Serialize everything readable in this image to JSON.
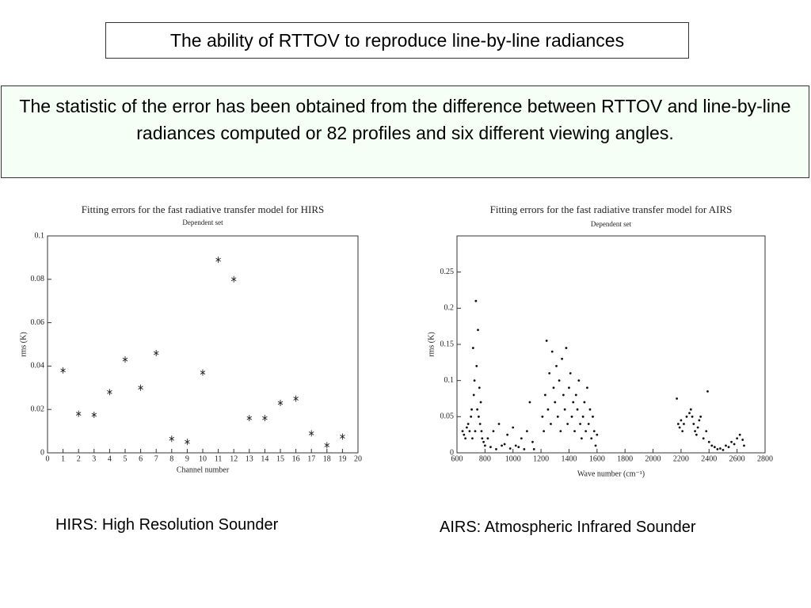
{
  "header": {
    "title": "The ability of RTTOV to reproduce line-by-line radiances"
  },
  "description": "The statistic of the error has been obtained from the difference between RTTOV and line-by-line  radiances computed or 82 profiles and six different viewing angles.",
  "captions": [
    "HIRS: High Resolution Sounder",
    "AIRS: Atmospheric Infrared Sounder"
  ],
  "chart_data": [
    {
      "type": "scatter",
      "title": "Fitting errors for the fast radiative transfer model for HIRS",
      "subtitle": "Dependent set",
      "x_label": "Channel number",
      "y_label": "rms (K)",
      "marker": "asterisk",
      "color": "#222",
      "x": [
        1,
        2,
        3,
        4,
        5,
        6,
        7,
        8,
        9,
        10,
        11,
        12,
        13,
        14,
        15,
        16,
        17,
        18,
        19
      ],
      "values": [
        0.038,
        0.018,
        0.0175,
        0.028,
        0.043,
        0.03,
        0.046,
        0.0065,
        0.005,
        0.037,
        0.089,
        0.08,
        0.016,
        0.016,
        0.023,
        0.025,
        0.009,
        0.0035,
        0.0075
      ],
      "xlim": [
        0,
        20
      ],
      "xticks": [
        0,
        1,
        2,
        3,
        4,
        5,
        6,
        7,
        8,
        9,
        10,
        11,
        12,
        13,
        14,
        15,
        16,
        17,
        18,
        19,
        20
      ],
      "ylim": [
        0,
        0.1
      ],
      "yticks": [
        0,
        0.02,
        0.04,
        0.06,
        0.08,
        0.1
      ]
    },
    {
      "type": "scatter",
      "title": "Fitting errors for the fast radiative transfer model for AIRS",
      "subtitle": "Dependent set",
      "x_label": "Wave number (cm⁻¹)",
      "y_label": "rms (K)",
      "marker": "dot",
      "color": "#111",
      "x": [
        640,
        650,
        660,
        670,
        680,
        690,
        700,
        705,
        710,
        715,
        720,
        725,
        730,
        735,
        740,
        745,
        750,
        755,
        760,
        765,
        770,
        775,
        780,
        790,
        800,
        820,
        840,
        860,
        880,
        900,
        920,
        940,
        960,
        980,
        1000,
        1020,
        1040,
        1060,
        1080,
        1100,
        1120,
        1140,
        1150,
        1210,
        1220,
        1230,
        1240,
        1250,
        1260,
        1270,
        1280,
        1290,
        1300,
        1310,
        1320,
        1330,
        1340,
        1350,
        1360,
        1370,
        1380,
        1390,
        1400,
        1410,
        1420,
        1430,
        1440,
        1450,
        1460,
        1470,
        1480,
        1490,
        1500,
        1510,
        1520,
        1530,
        1540,
        1550,
        1560,
        1570,
        1580,
        1590,
        1600,
        2170,
        2180,
        2190,
        2200,
        2210,
        2220,
        2240,
        2260,
        2270,
        2280,
        2290,
        2300,
        2310,
        2320,
        2330,
        2340,
        2360,
        2380,
        2390,
        2400,
        2420,
        2440,
        2460,
        2480,
        2500,
        2520,
        2540,
        2560,
        2580,
        2600,
        2620,
        2640,
        2650
      ],
      "values": [
        0.03,
        0.025,
        0.02,
        0.035,
        0.04,
        0.03,
        0.05,
        0.06,
        0.02,
        0.145,
        0.08,
        0.1,
        0.03,
        0.21,
        0.12,
        0.06,
        0.17,
        0.05,
        0.09,
        0.04,
        0.07,
        0.03,
        0.02,
        0.015,
        0.01,
        0.02,
        0.008,
        0.03,
        0.005,
        0.04,
        0.01,
        0.012,
        0.025,
        0.006,
        0.035,
        0.01,
        0.008,
        0.02,
        0.005,
        0.03,
        0.07,
        0.015,
        0.005,
        0.05,
        0.03,
        0.08,
        0.155,
        0.06,
        0.11,
        0.04,
        0.14,
        0.09,
        0.07,
        0.12,
        0.05,
        0.1,
        0.03,
        0.13,
        0.08,
        0.06,
        0.145,
        0.04,
        0.09,
        0.11,
        0.05,
        0.07,
        0.03,
        0.08,
        0.06,
        0.1,
        0.04,
        0.02,
        0.05,
        0.07,
        0.03,
        0.09,
        0.04,
        0.06,
        0.02,
        0.05,
        0.03,
        0.01,
        0.025,
        0.075,
        0.04,
        0.035,
        0.045,
        0.03,
        0.04,
        0.05,
        0.055,
        0.06,
        0.05,
        0.04,
        0.03,
        0.025,
        0.035,
        0.045,
        0.05,
        0.02,
        0.03,
        0.085,
        0.015,
        0.01,
        0.008,
        0.005,
        0.006,
        0.004,
        0.01,
        0.008,
        0.015,
        0.012,
        0.02,
        0.025,
        0.018,
        0.01
      ],
      "xlim": [
        600,
        2800
      ],
      "xticks": [
        600,
        800,
        1000,
        1200,
        1400,
        1600,
        1800,
        2000,
        2200,
        2400,
        2600,
        2800
      ],
      "ylim": [
        0,
        0.3
      ],
      "yticks": [
        0,
        0.05,
        0.1,
        0.15,
        0.2,
        0.25
      ]
    }
  ]
}
